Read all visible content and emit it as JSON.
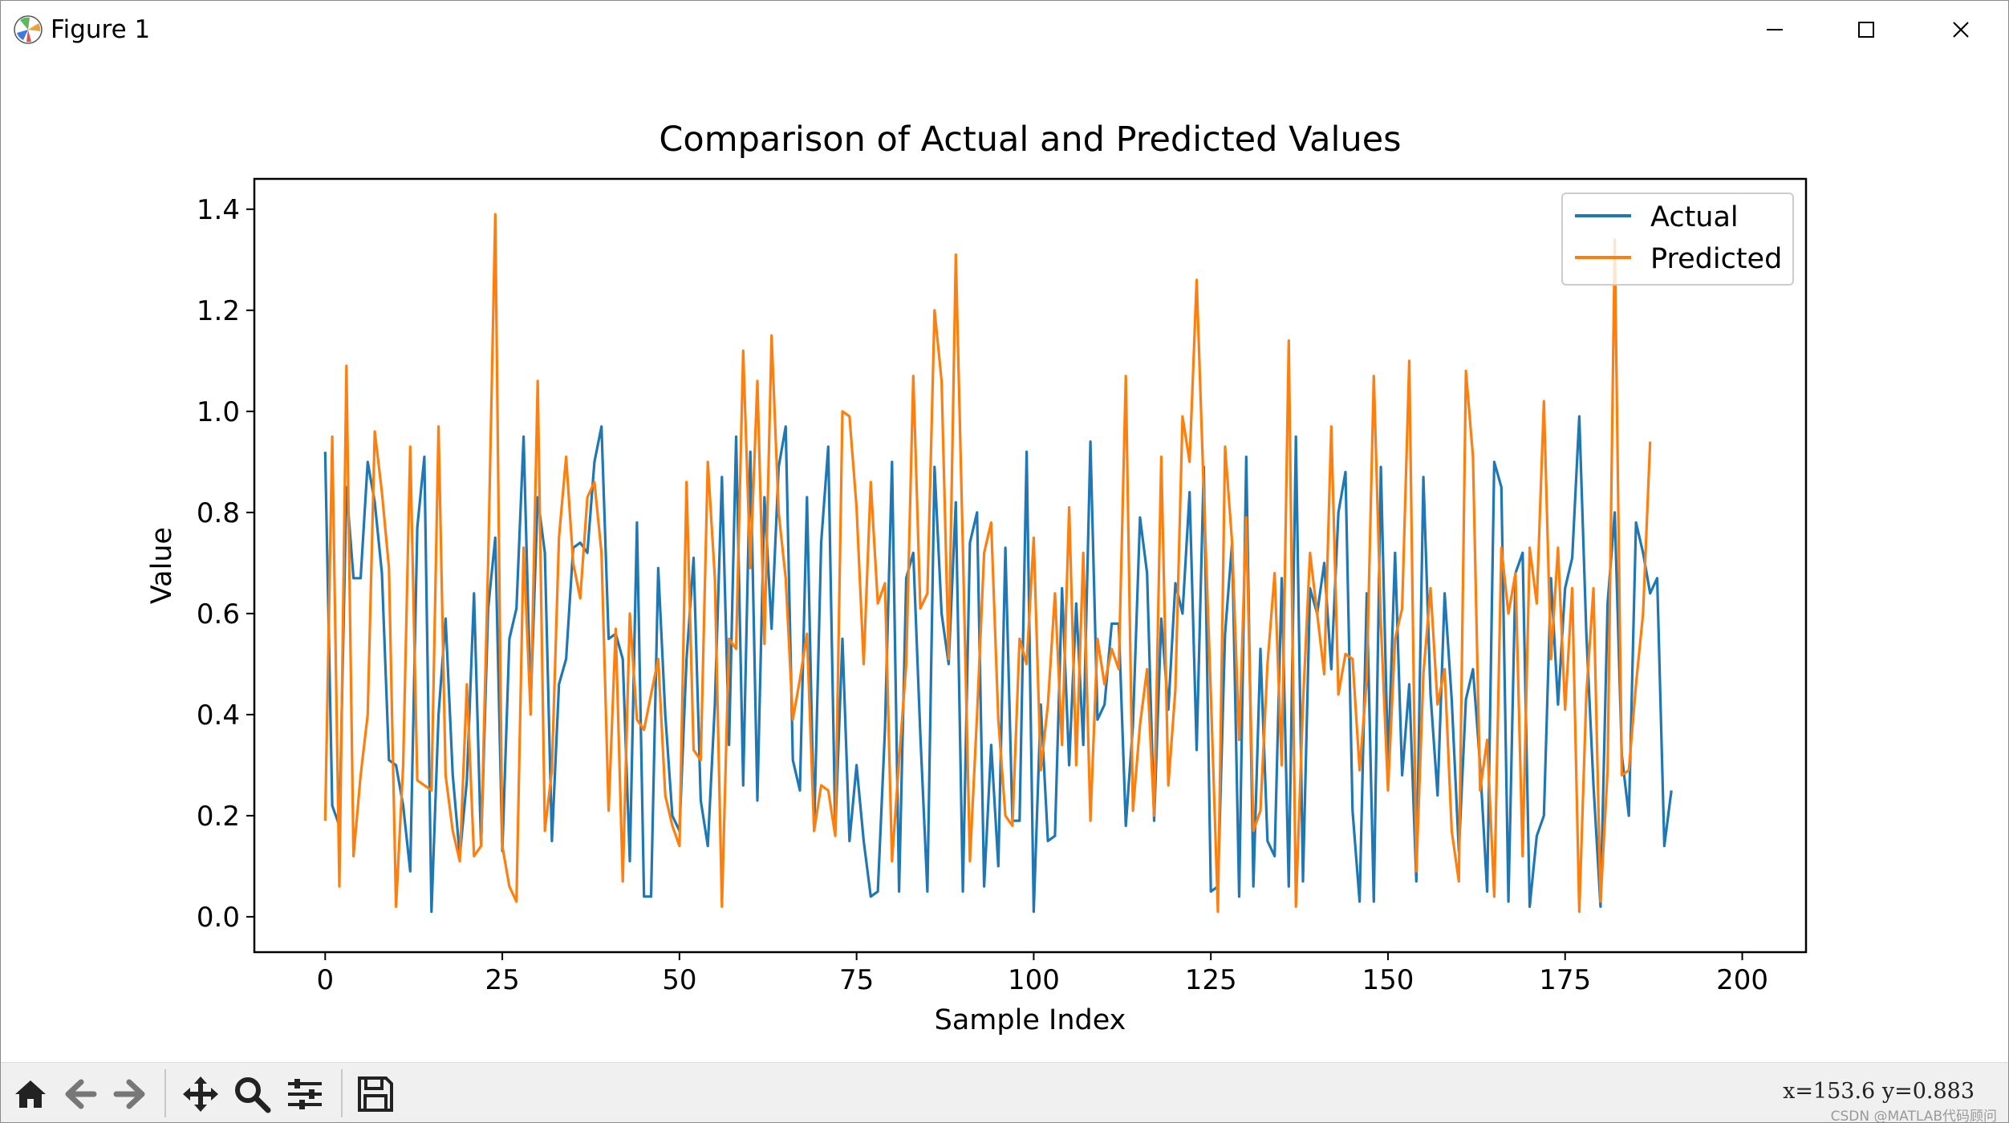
{
  "window": {
    "title": "Figure 1",
    "controls": {
      "minimize": "minimize",
      "maximize": "maximize",
      "close": "close"
    }
  },
  "toolbar": {
    "buttons": [
      "home-icon",
      "back-arrow-icon",
      "forward-arrow-icon",
      "pan-icon",
      "zoom-icon",
      "configure-subplots-icon",
      "save-icon"
    ],
    "coords": "x=153.6  y=0.883",
    "watermark": "CSDN @MATLAB代码顾问"
  },
  "chart_data": {
    "type": "line",
    "title": "Comparison of Actual and Predicted Values",
    "xlabel": "Sample Index",
    "ylabel": "Value",
    "xlim": [
      -10,
      209
    ],
    "ylim": [
      -0.07,
      1.46
    ],
    "xticks": [
      0,
      25,
      50,
      75,
      100,
      125,
      150,
      175,
      200
    ],
    "yticks": [
      0.0,
      0.2,
      0.4,
      0.6,
      0.8,
      1.0,
      1.2,
      1.4
    ],
    "ytick_labels": [
      "0.0",
      "0.2",
      "0.4",
      "0.6",
      "0.8",
      "1.0",
      "1.2",
      "1.4"
    ],
    "legend": {
      "position": "upper right",
      "entries": [
        "Actual",
        "Predicted"
      ]
    },
    "colors": {
      "Actual": "#1f77b4",
      "Predicted": "#ff7f0e"
    },
    "series": [
      {
        "name": "Actual",
        "color": "#1f77b4",
        "values": [
          0.92,
          0.22,
          0.18,
          0.85,
          0.67,
          0.67,
          0.9,
          0.82,
          0.68,
          0.31,
          0.3,
          0.22,
          0.09,
          0.77,
          0.91,
          0.01,
          0.4,
          0.59,
          0.28,
          0.12,
          0.27,
          0.64,
          0.14,
          0.61,
          0.75,
          0.13,
          0.55,
          0.61,
          0.95,
          0.42,
          0.83,
          0.72,
          0.15,
          0.46,
          0.51,
          0.73,
          0.74,
          0.72,
          0.9,
          0.97,
          0.55,
          0.56,
          0.51,
          0.11,
          0.78,
          0.04,
          0.04,
          0.69,
          0.4,
          0.2,
          0.17,
          0.51,
          0.71,
          0.23,
          0.14,
          0.42,
          0.87,
          0.34,
          0.95,
          0.26,
          0.92,
          0.23,
          0.83,
          0.57,
          0.89,
          0.97,
          0.31,
          0.25,
          0.83,
          0.17,
          0.74,
          0.93,
          0.17,
          0.55,
          0.15,
          0.3,
          0.15,
          0.04,
          0.05,
          0.37,
          0.9,
          0.05,
          0.67,
          0.72,
          0.36,
          0.05,
          0.89,
          0.6,
          0.5,
          0.82,
          0.05,
          0.74,
          0.8,
          0.06,
          0.34,
          0.1,
          0.73,
          0.19,
          0.19,
          0.92,
          0.01,
          0.42,
          0.15,
          0.16,
          0.65,
          0.3,
          0.62,
          0.34,
          0.94,
          0.39,
          0.42,
          0.58,
          0.58,
          0.18,
          0.38,
          0.79,
          0.68,
          0.19,
          0.59,
          0.41,
          0.66,
          0.6,
          0.84,
          0.33,
          0.89,
          0.05,
          0.06,
          0.56,
          0.74,
          0.04,
          0.91,
          0.06,
          0.53,
          0.15,
          0.12,
          0.67,
          0.06,
          0.95,
          0.07,
          0.65,
          0.6,
          0.7,
          0.49,
          0.8,
          0.88,
          0.21,
          0.03,
          0.64,
          0.03,
          0.89,
          0.3,
          0.72,
          0.28,
          0.46,
          0.07,
          0.87,
          0.44,
          0.24,
          0.64,
          0.43,
          0.13,
          0.43,
          0.49,
          0.3,
          0.05,
          0.9,
          0.85,
          0.03,
          0.68,
          0.72,
          0.02,
          0.16,
          0.2,
          0.67,
          0.42,
          0.65,
          0.71,
          0.99,
          0.56,
          0.26,
          0.02,
          0.62,
          0.8,
          0.32,
          0.2,
          0.78,
          0.72,
          0.64,
          0.67,
          0.14,
          0.25
        ]
      },
      {
        "name": "Predicted",
        "color": "#ff7f0e",
        "values": [
          0.19,
          0.95,
          0.06,
          1.09,
          0.12,
          0.28,
          0.4,
          0.96,
          0.84,
          0.69,
          0.02,
          0.3,
          0.93,
          0.27,
          0.26,
          0.25,
          0.97,
          0.28,
          0.17,
          0.11,
          0.46,
          0.12,
          0.14,
          0.7,
          1.39,
          0.14,
          0.06,
          0.03,
          0.73,
          0.4,
          1.06,
          0.17,
          0.29,
          0.75,
          0.91,
          0.7,
          0.63,
          0.83,
          0.86,
          0.72,
          0.21,
          0.57,
          0.07,
          0.6,
          0.39,
          0.37,
          0.44,
          0.51,
          0.24,
          0.18,
          0.14,
          0.86,
          0.33,
          0.31,
          0.9,
          0.67,
          0.02,
          0.55,
          0.53,
          1.12,
          0.69,
          1.06,
          0.54,
          1.15,
          0.8,
          0.67,
          0.39,
          0.47,
          0.56,
          0.17,
          0.26,
          0.25,
          0.16,
          1.0,
          0.99,
          0.81,
          0.5,
          0.86,
          0.62,
          0.66,
          0.11,
          0.31,
          0.5,
          1.07,
          0.61,
          0.64,
          1.2,
          1.06,
          0.51,
          1.31,
          0.73,
          0.11,
          0.4,
          0.72,
          0.78,
          0.39,
          0.2,
          0.18,
          0.55,
          0.5,
          0.75,
          0.29,
          0.42,
          0.64,
          0.34,
          0.81,
          0.3,
          0.72,
          0.19,
          0.55,
          0.46,
          0.53,
          0.49,
          1.07,
          0.21,
          0.38,
          0.49,
          0.2,
          0.91,
          0.26,
          0.45,
          0.99,
          0.9,
          1.26,
          0.84,
          0.44,
          0.01,
          0.93,
          0.74,
          0.35,
          0.79,
          0.17,
          0.21,
          0.5,
          0.68,
          0.3,
          1.14,
          0.02,
          0.42,
          0.72,
          0.6,
          0.48,
          0.97,
          0.44,
          0.52,
          0.51,
          0.29,
          0.47,
          1.07,
          0.58,
          0.25,
          0.55,
          0.61,
          1.1,
          0.09,
          0.48,
          0.65,
          0.42,
          0.49,
          0.17,
          0.07,
          1.08,
          0.91,
          0.25,
          0.35,
          0.04,
          0.73,
          0.6,
          0.68,
          0.12,
          0.73,
          0.62,
          1.02,
          0.51,
          0.73,
          0.41,
          0.65,
          0.01,
          0.44,
          0.65,
          0.03,
          0.29,
          1.34,
          0.28,
          0.29,
          0.46,
          0.6,
          0.94
        ]
      }
    ]
  }
}
